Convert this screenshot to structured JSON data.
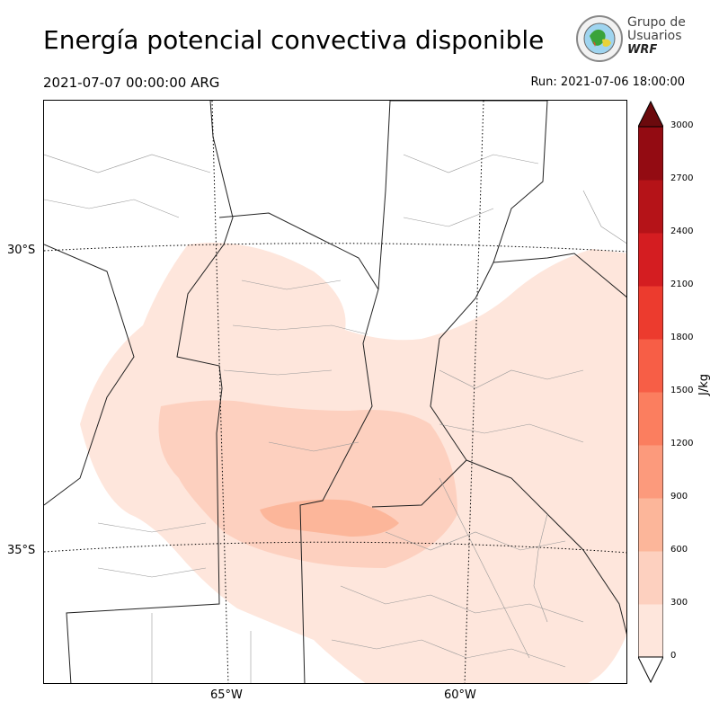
{
  "header": {
    "title": "Energía potencial convectiva disponible",
    "valid_time": "2021-07-07 00:00:00 ARG",
    "run": "Run: 2021-07-06 18:00:00"
  },
  "logo": {
    "line1": "Grupo de",
    "line2": "Usuarios",
    "line3": "WRF"
  },
  "map": {
    "lat_labels": [
      "30°S",
      "35°S"
    ],
    "lon_labels": [
      "65°W",
      "60°W"
    ]
  },
  "colorbar": {
    "unit": "J/kg",
    "ticks": [
      "0",
      "300",
      "600",
      "900",
      "1200",
      "1500",
      "1800",
      "2100",
      "2400",
      "2700",
      "3000"
    ],
    "colors": [
      "#fee6dc",
      "#fdd0bf",
      "#fcb69a",
      "#fc9a7c",
      "#fb7e5f",
      "#f75e46",
      "#ec3b2e",
      "#d41d21",
      "#b51318",
      "#930b12"
    ],
    "extend_color": "#6b0a0d"
  }
}
